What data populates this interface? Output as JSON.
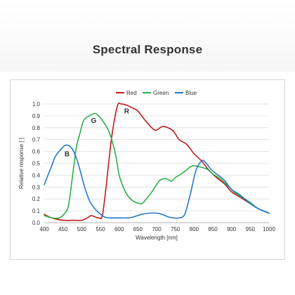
{
  "page": {
    "title": "Spectral Response"
  },
  "chart_data": {
    "type": "line",
    "xlabel": "Wavelength [nm]",
    "ylabel": "Relative response [ ]",
    "xlim": [
      400,
      1000
    ],
    "ylim": [
      0,
      1.0
    ],
    "xticks": [
      400,
      450,
      500,
      550,
      600,
      650,
      700,
      750,
      800,
      850,
      900,
      950,
      1000
    ],
    "yticks": [
      "0.0",
      "0.1",
      "0.2",
      "0.3",
      "0.4",
      "0.5",
      "0.6",
      "0.7",
      "0.8",
      "0.9",
      "1.0"
    ],
    "grid": "horizontal",
    "legend": "top-center",
    "series": [
      {
        "name": "Red",
        "tag": "R",
        "tag_at": [
          620,
          0.92
        ],
        "color": "#c0181f",
        "points": [
          [
            400,
            0.07
          ],
          [
            420,
            0.04
          ],
          [
            450,
            0.02
          ],
          [
            480,
            0.02
          ],
          [
            500,
            0.02
          ],
          [
            515,
            0.04
          ],
          [
            525,
            0.06
          ],
          [
            535,
            0.05
          ],
          [
            545,
            0.04
          ],
          [
            555,
            0.06
          ],
          [
            565,
            0.3
          ],
          [
            580,
            0.72
          ],
          [
            595,
            0.98
          ],
          [
            605,
            1.0
          ],
          [
            620,
            0.99
          ],
          [
            640,
            0.96
          ],
          [
            650,
            0.94
          ],
          [
            670,
            0.86
          ],
          [
            690,
            0.79
          ],
          [
            700,
            0.78
          ],
          [
            715,
            0.81
          ],
          [
            730,
            0.8
          ],
          [
            745,
            0.77
          ],
          [
            760,
            0.7
          ],
          [
            780,
            0.66
          ],
          [
            800,
            0.58
          ],
          [
            820,
            0.52
          ],
          [
            840,
            0.44
          ],
          [
            860,
            0.38
          ],
          [
            880,
            0.33
          ],
          [
            900,
            0.26
          ],
          [
            920,
            0.22
          ],
          [
            950,
            0.16
          ],
          [
            970,
            0.12
          ],
          [
            1000,
            0.08
          ]
        ]
      },
      {
        "name": "Green",
        "tag": "G",
        "tag_at": [
          532,
          0.84
        ],
        "color": "#2bb04a",
        "points": [
          [
            400,
            0.06
          ],
          [
            420,
            0.04
          ],
          [
            440,
            0.04
          ],
          [
            455,
            0.08
          ],
          [
            465,
            0.15
          ],
          [
            475,
            0.38
          ],
          [
            485,
            0.62
          ],
          [
            495,
            0.75
          ],
          [
            505,
            0.86
          ],
          [
            520,
            0.9
          ],
          [
            535,
            0.92
          ],
          [
            545,
            0.9
          ],
          [
            560,
            0.84
          ],
          [
            575,
            0.75
          ],
          [
            590,
            0.58
          ],
          [
            600,
            0.4
          ],
          [
            615,
            0.27
          ],
          [
            630,
            0.2
          ],
          [
            645,
            0.17
          ],
          [
            660,
            0.16
          ],
          [
            670,
            0.19
          ],
          [
            685,
            0.25
          ],
          [
            700,
            0.32
          ],
          [
            710,
            0.36
          ],
          [
            725,
            0.37
          ],
          [
            740,
            0.35
          ],
          [
            750,
            0.38
          ],
          [
            770,
            0.42
          ],
          [
            790,
            0.47
          ],
          [
            800,
            0.48
          ],
          [
            815,
            0.47
          ],
          [
            835,
            0.45
          ],
          [
            850,
            0.41
          ],
          [
            870,
            0.37
          ],
          [
            890,
            0.31
          ],
          [
            910,
            0.25
          ],
          [
            930,
            0.21
          ],
          [
            950,
            0.17
          ],
          [
            970,
            0.12
          ],
          [
            1000,
            0.08
          ]
        ]
      },
      {
        "name": "Blue",
        "tag": "B",
        "tag_at": [
          461,
          0.56
        ],
        "color": "#2478c8",
        "points": [
          [
            400,
            0.32
          ],
          [
            410,
            0.4
          ],
          [
            420,
            0.48
          ],
          [
            430,
            0.56
          ],
          [
            445,
            0.62
          ],
          [
            455,
            0.65
          ],
          [
            465,
            0.65
          ],
          [
            475,
            0.62
          ],
          [
            485,
            0.55
          ],
          [
            495,
            0.45
          ],
          [
            505,
            0.33
          ],
          [
            515,
            0.23
          ],
          [
            525,
            0.16
          ],
          [
            540,
            0.1
          ],
          [
            560,
            0.05
          ],
          [
            575,
            0.04
          ],
          [
            590,
            0.04
          ],
          [
            605,
            0.04
          ],
          [
            625,
            0.04
          ],
          [
            640,
            0.05
          ],
          [
            660,
            0.07
          ],
          [
            680,
            0.08
          ],
          [
            700,
            0.08
          ],
          [
            715,
            0.07
          ],
          [
            730,
            0.05
          ],
          [
            745,
            0.04
          ],
          [
            760,
            0.04
          ],
          [
            775,
            0.07
          ],
          [
            790,
            0.24
          ],
          [
            805,
            0.44
          ],
          [
            820,
            0.52
          ],
          [
            830,
            0.51
          ],
          [
            845,
            0.45
          ],
          [
            860,
            0.41
          ],
          [
            880,
            0.36
          ],
          [
            900,
            0.28
          ],
          [
            920,
            0.24
          ],
          [
            950,
            0.16
          ],
          [
            970,
            0.12
          ],
          [
            1000,
            0.08
          ]
        ]
      }
    ]
  }
}
